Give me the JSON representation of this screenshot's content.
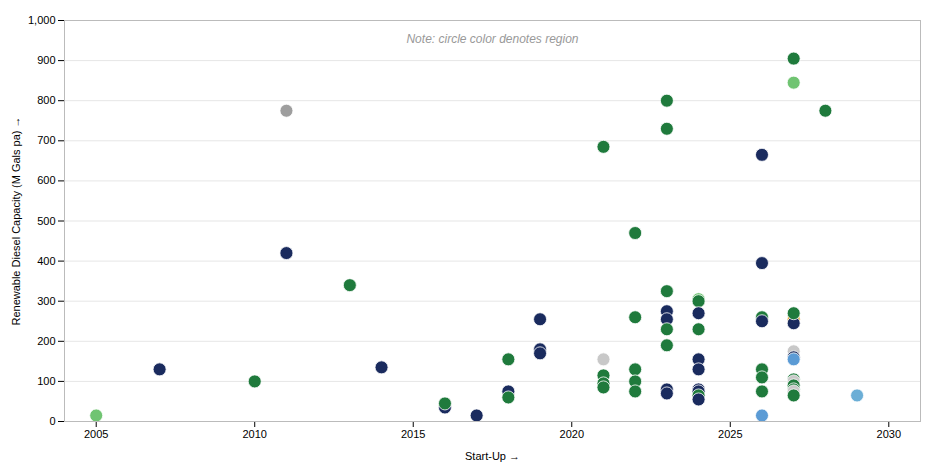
{
  "chart_data": {
    "type": "scatter",
    "xlabel": "Start-Up",
    "ylabel": "Renewable Diesel Capacity (M Gals pa)",
    "annotations": [
      "Note: circle color denotes region"
    ],
    "xlim": [
      2004,
      2031
    ],
    "ylim": [
      0,
      1000
    ],
    "xticks": [
      2005,
      2010,
      2015,
      2020,
      2025,
      2030
    ],
    "yticks": [
      0,
      100,
      200,
      300,
      400,
      500,
      600,
      700,
      800,
      900,
      {
        "value": 1000,
        "label": "1,000"
      }
    ],
    "grid": true,
    "x": [
      2005,
      2007,
      2010,
      2011,
      2011,
      2013,
      2014,
      2016,
      2016,
      2017,
      2018,
      2018,
      2018,
      2019,
      2019,
      2019,
      2021,
      2021,
      2021,
      2021,
      2021,
      2022,
      2022,
      2022,
      2022,
      2022,
      2023,
      2023,
      2023,
      2023,
      2023,
      2023,
      2023,
      2023,
      2023,
      2024,
      2024,
      2024,
      2024,
      2024,
      2024,
      2024,
      2024,
      2024,
      2024,
      2026,
      2026,
      2026,
      2026,
      2026,
      2026,
      2026,
      2026,
      2027,
      2027,
      2027,
      2027,
      2027,
      2027,
      2027,
      2027,
      2027,
      2027,
      2027,
      2027,
      2027,
      2027,
      2028,
      2029
    ],
    "values": [
      15,
      130,
      100,
      420,
      775,
      340,
      135,
      35,
      45,
      15,
      75,
      60,
      155,
      255,
      180,
      170,
      685,
      155,
      115,
      95,
      85,
      470,
      260,
      130,
      100,
      75,
      800,
      730,
      325,
      275,
      255,
      230,
      190,
      80,
      70,
      305,
      300,
      270,
      230,
      155,
      130,
      80,
      75,
      65,
      55,
      665,
      395,
      260,
      250,
      130,
      110,
      75,
      15,
      905,
      845,
      255,
      245,
      270,
      175,
      160,
      155,
      105,
      100,
      90,
      80,
      75,
      65,
      775,
      65
    ],
    "colors": [
      "#70c472",
      "#1a2b5e",
      "#1f7a3c",
      "#1a2b5e",
      "#9e9e9e",
      "#1f7a3c",
      "#1a2b5e",
      "#1a2b5e",
      "#1f7a3c",
      "#1a2b5e",
      "#1a2b5e",
      "#1f7a3c",
      "#1f7a3c",
      "#1a2b5e",
      "#1a2b5e",
      "#1a2b5e",
      "#1f7a3c",
      "#c8c8c8",
      "#1f7a3c",
      "#1f7a3c",
      "#1f7a3c",
      "#1f7a3c",
      "#1f7a3c",
      "#1f7a3c",
      "#1f7a3c",
      "#1f7a3c",
      "#1f7a3c",
      "#1f7a3c",
      "#1f7a3c",
      "#1a2b5e",
      "#1a2b5e",
      "#1f7a3c",
      "#1f7a3c",
      "#1a2b5e",
      "#1a2b5e",
      "#70c472",
      "#1f7a3c",
      "#1a2b5e",
      "#1f7a3c",
      "#1a2b5e",
      "#1a2b5e",
      "#1a2b5e",
      "#1a2b5e",
      "#1f7a3c",
      "#1a2b5e",
      "#1a2b5e",
      "#1a2b5e",
      "#1f7a3c",
      "#1a2b5e",
      "#1f7a3c",
      "#1f7a3c",
      "#1f7a3c",
      "#5b9bd5",
      "#1f7a3c",
      "#70c472",
      "#e8a020",
      "#1a2b5e",
      "#1f7a3c",
      "#c8c8c8",
      "#1a2b5e",
      "#5b9bd5",
      "#1f7a3c",
      "#c8c8c8",
      "#1f7a3c",
      "#1f7a3c",
      "#c8c8c8",
      "#1f7a3c",
      "#1f7a3c",
      "#6baed6"
    ]
  }
}
